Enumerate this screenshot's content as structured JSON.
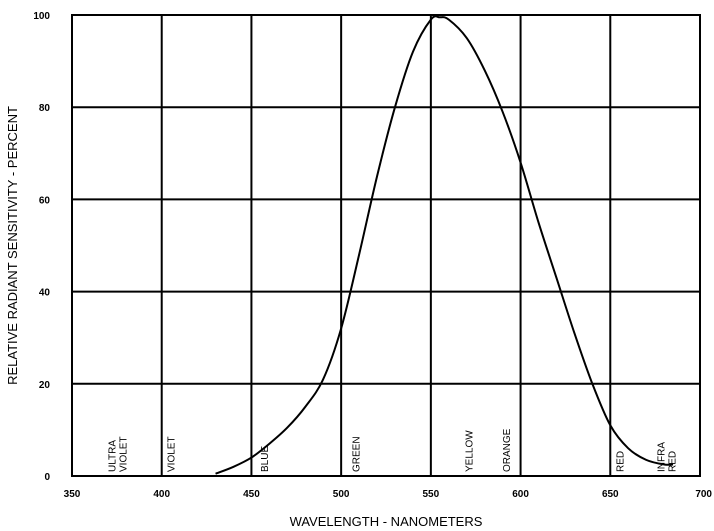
{
  "chart_data": {
    "type": "line",
    "title": "",
    "xlabel": "WAVELENGTH - NANOMETERS",
    "ylabel": "RELATIVE RADIANT SENSITIVITY - PERCENT",
    "xlim": [
      350,
      700
    ],
    "ylim": [
      0,
      100
    ],
    "x_ticks": [
      "350",
      "400",
      "450",
      "500",
      "550",
      "600",
      "650",
      "700"
    ],
    "y_ticks": [
      "0",
      "20",
      "40",
      "60",
      "80",
      "100"
    ],
    "grid": true,
    "grid_x": [
      400,
      450,
      500,
      550,
      600,
      650
    ],
    "grid_y": [
      20,
      40,
      60,
      80
    ],
    "bands": [
      {
        "lines": [
          "ULTRA",
          "VIOLET"
        ],
        "x": 375
      },
      {
        "lines": [
          "VIOLET"
        ],
        "x": 405
      },
      {
        "lines": [
          "BLUE"
        ],
        "x": 457
      },
      {
        "lines": [
          "GREEN"
        ],
        "x": 508
      },
      {
        "lines": [
          "YELLOW"
        ],
        "x": 571
      },
      {
        "lines": [
          "ORANGE"
        ],
        "x": 592
      },
      {
        "lines": [
          "RED"
        ],
        "x": 655
      },
      {
        "lines": [
          "INFRA",
          "RED"
        ],
        "x": 681
      }
    ],
    "series": [
      {
        "x": [
          430,
          440,
          450,
          460,
          470,
          480,
          490,
          500,
          510,
          520,
          530,
          540,
          550,
          555,
          560,
          570,
          580,
          590,
          600,
          610,
          620,
          630,
          640,
          650,
          660,
          670,
          680,
          685
        ],
        "y": [
          0.5,
          2,
          4,
          7,
          10.5,
          15,
          21,
          32,
          48,
          65,
          80,
          92,
          99,
          99.5,
          99,
          95,
          88,
          79,
          68,
          55,
          43,
          31,
          20,
          11,
          6,
          3.5,
          2.5,
          2.5
        ]
      }
    ]
  }
}
